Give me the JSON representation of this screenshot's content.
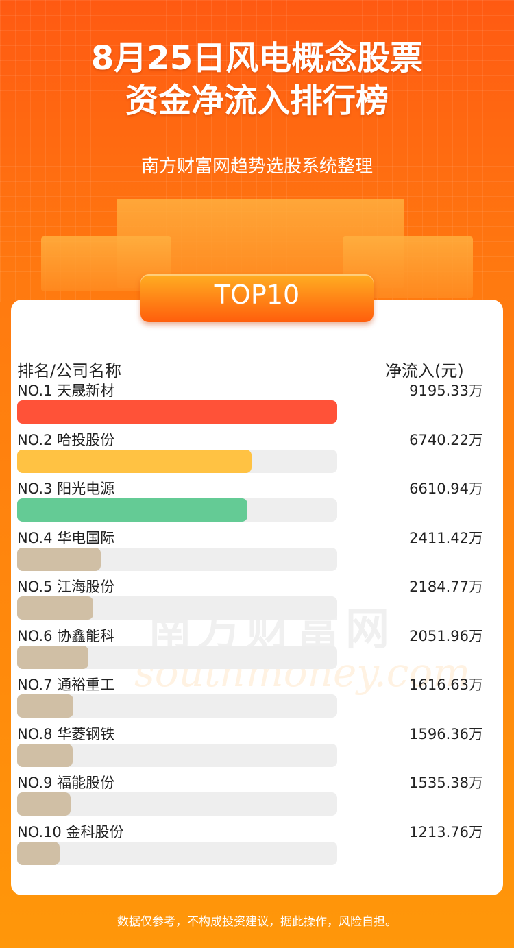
{
  "header": {
    "title_line1": "8月25日风电概念股票",
    "title_line2": "资金净流入排行榜",
    "subtitle": "南方财富网趋势选股系统整理",
    "badge": "TOP10"
  },
  "chart_data": {
    "type": "bar",
    "orientation": "horizontal",
    "col_left": "排名/公司名称",
    "col_right": "净流入(元)",
    "unit": "万",
    "categories": [
      "NO.1 天晟新材",
      "NO.2 哈投股份",
      "NO.3 阳光电源",
      "NO.4 华电国际",
      "NO.5 江海股份",
      "NO.6 协鑫能科",
      "NO.7 通裕重工",
      "NO.8 华菱钢铁",
      "NO.9 福能股份",
      "NO.10 金科股份"
    ],
    "values": [
      9195.33,
      6740.22,
      6610.94,
      2411.42,
      2184.77,
      2051.96,
      1616.63,
      1596.36,
      1535.38,
      1213.76
    ],
    "labels": [
      "9195.33万",
      "6740.22万",
      "6610.94万",
      "2411.42万",
      "2184.77万",
      "2051.96万",
      "1616.63万",
      "1596.36万",
      "1535.38万",
      "1213.76万"
    ],
    "colors": [
      "#ff5238",
      "#ffc243",
      "#64cb95",
      "#d0bfa5",
      "#d0bfa5",
      "#d0bfa5",
      "#d0bfa5",
      "#d0bfa5",
      "#d0bfa5",
      "#d0bfa5"
    ],
    "track_color": "#eeeeee"
  },
  "watermark": {
    "cn": "南方财富网",
    "en": "southmoney.com"
  },
  "footer": "数据仅参考，不构成投资建议，据此操作，风险自担。"
}
